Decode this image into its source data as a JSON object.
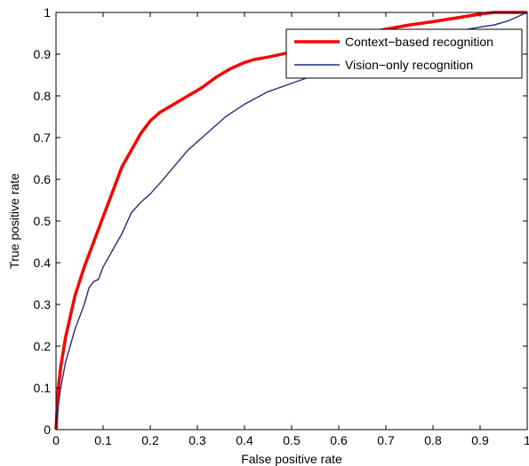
{
  "chart_data": {
    "type": "line",
    "title": "",
    "xlabel": "False positive rate",
    "ylabel": "True positive rate",
    "xlim": [
      0,
      1
    ],
    "ylim": [
      0,
      1
    ],
    "xticks": [
      "0",
      "0.1",
      "0.2",
      "0.3",
      "0.4",
      "0.5",
      "0.6",
      "0.7",
      "0.8",
      "0.9",
      "1"
    ],
    "yticks": [
      "0",
      "0.1",
      "0.2",
      "0.3",
      "0.4",
      "0.5",
      "0.6",
      "0.7",
      "0.8",
      "0.9",
      "1"
    ],
    "grid": false,
    "legend_position": "top-right",
    "series": [
      {
        "name": "Context−based recognition",
        "color": "#ff0000",
        "x": [
          0,
          0.005,
          0.01,
          0.02,
          0.03,
          0.04,
          0.06,
          0.08,
          0.1,
          0.12,
          0.14,
          0.16,
          0.18,
          0.2,
          0.22,
          0.25,
          0.28,
          0.31,
          0.34,
          0.37,
          0.4,
          0.42,
          0.45,
          0.5,
          0.55,
          0.6,
          0.65,
          0.7,
          0.75,
          0.8,
          0.85,
          0.9,
          0.93,
          0.96,
          1.0
        ],
        "y": [
          0,
          0.1,
          0.15,
          0.22,
          0.27,
          0.32,
          0.39,
          0.45,
          0.51,
          0.57,
          0.63,
          0.67,
          0.71,
          0.74,
          0.76,
          0.78,
          0.8,
          0.82,
          0.845,
          0.865,
          0.88,
          0.887,
          0.893,
          0.905,
          0.92,
          0.935,
          0.948,
          0.96,
          0.97,
          0.978,
          0.987,
          0.996,
          1.0,
          1.0,
          1.0
        ]
      },
      {
        "name": "Vision−only recognition",
        "color": "#1f2f7f",
        "x": [
          0,
          0.005,
          0.01,
          0.02,
          0.03,
          0.04,
          0.05,
          0.06,
          0.07,
          0.08,
          0.09,
          0.1,
          0.12,
          0.14,
          0.16,
          0.18,
          0.2,
          0.22,
          0.25,
          0.28,
          0.3,
          0.33,
          0.36,
          0.4,
          0.45,
          0.5,
          0.55,
          0.6,
          0.65,
          0.7,
          0.75,
          0.8,
          0.85,
          0.9,
          0.93,
          0.96,
          1.0
        ],
        "y": [
          0,
          0.06,
          0.1,
          0.16,
          0.2,
          0.24,
          0.27,
          0.3,
          0.34,
          0.355,
          0.36,
          0.39,
          0.43,
          0.47,
          0.52,
          0.545,
          0.565,
          0.59,
          0.63,
          0.67,
          0.69,
          0.72,
          0.75,
          0.78,
          0.81,
          0.83,
          0.85,
          0.87,
          0.89,
          0.91,
          0.93,
          0.945,
          0.955,
          0.965,
          0.97,
          0.98,
          1.0
        ]
      }
    ]
  }
}
